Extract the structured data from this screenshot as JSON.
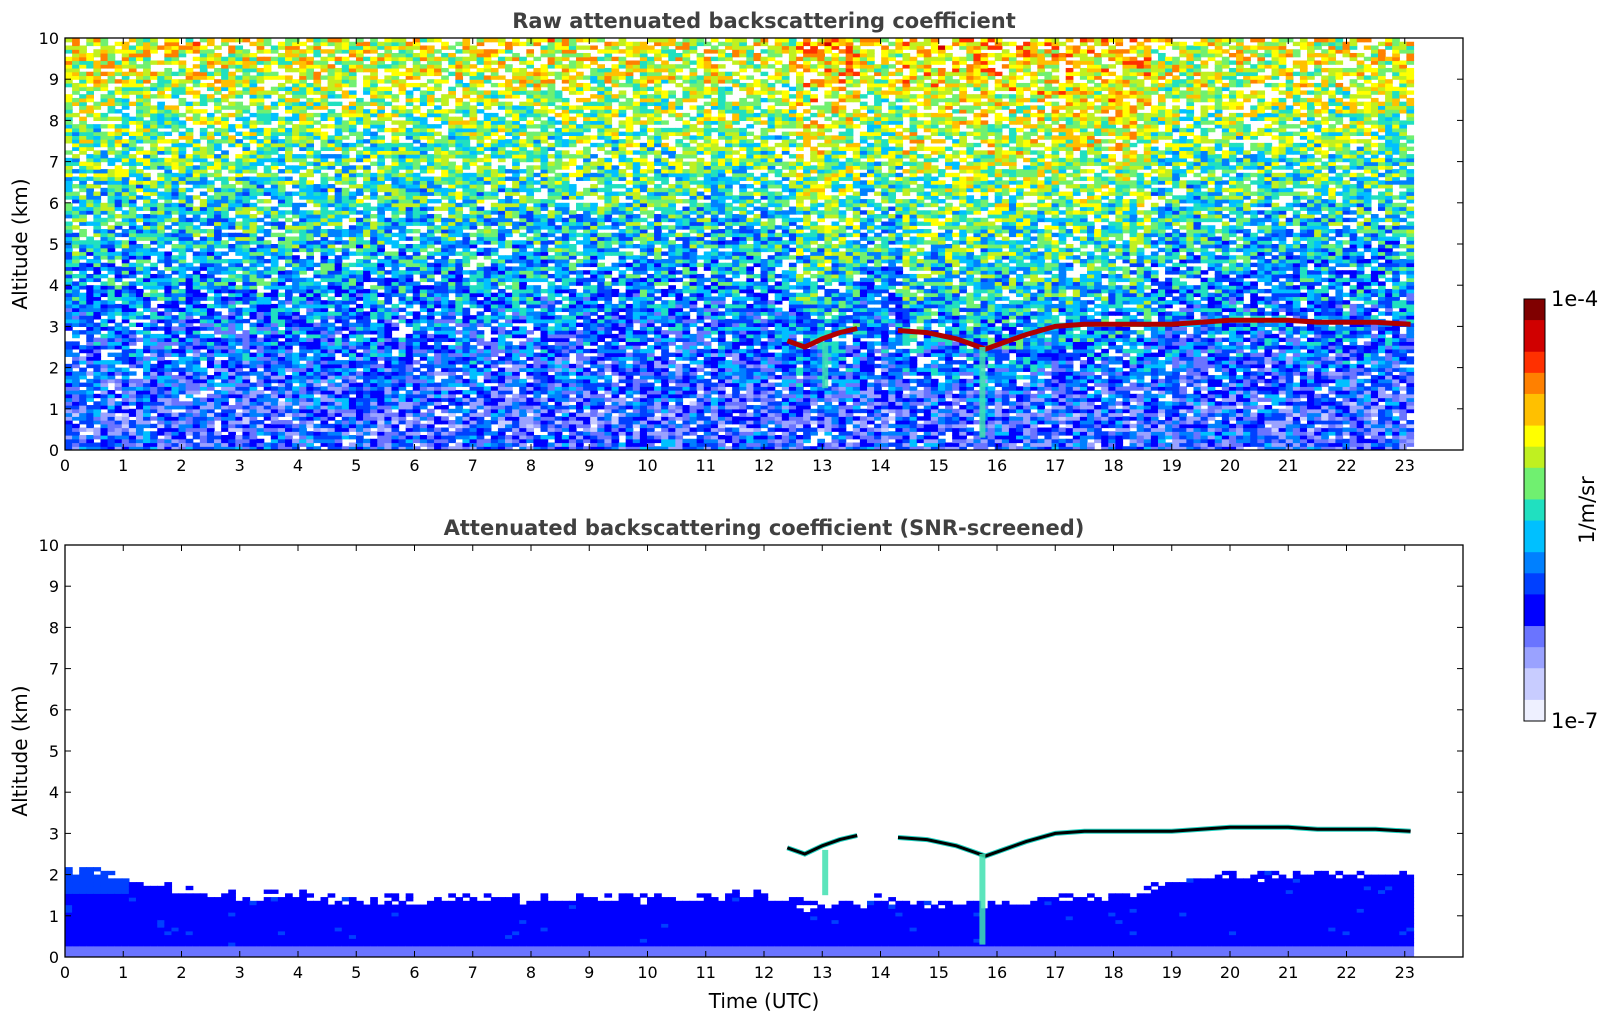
{
  "chart_data": [
    {
      "type": "heatmap",
      "title": "Raw attenuated backscattering coefficient",
      "xlabel": "",
      "ylabel": "Altitude (km)",
      "xlim": [
        0,
        24
      ],
      "ylim": [
        0,
        10
      ],
      "x_ticks": [
        "0",
        "1",
        "2",
        "3",
        "4",
        "5",
        "6",
        "7",
        "8",
        "9",
        "10",
        "11",
        "12",
        "13",
        "14",
        "15",
        "16",
        "17",
        "18",
        "19",
        "20",
        "21",
        "22",
        "23"
      ],
      "y_ticks": [
        "0",
        "1",
        "2",
        "3",
        "4",
        "5",
        "6",
        "7",
        "8",
        "9",
        "10"
      ],
      "data_extent_hours": 23.15,
      "screened": false,
      "cloud_layer_km": {
        "time_utc": [
          12.4,
          12.7,
          13.0,
          13.3,
          13.6,
          14.3,
          14.8,
          15.3,
          15.6,
          15.8,
          16.1,
          16.5,
          17.0,
          17.5,
          18.0,
          18.5,
          19.0,
          19.5,
          20.0,
          20.5,
          21.0,
          21.5,
          22.0,
          22.5,
          23.1
        ],
        "altitude_km": [
          2.65,
          2.5,
          2.7,
          2.85,
          2.95,
          2.9,
          2.85,
          2.7,
          2.55,
          2.45,
          2.6,
          2.8,
          3.0,
          3.05,
          3.05,
          3.05,
          3.05,
          3.1,
          3.15,
          3.15,
          3.15,
          3.1,
          3.1,
          3.1,
          3.05
        ]
      },
      "gap_hours": [
        13.65,
        14.25
      ]
    },
    {
      "type": "heatmap",
      "title": "Attenuated backscattering coefficient (SNR-screened)",
      "xlabel": "Time (UTC)",
      "ylabel": "Altitude (km)",
      "xlim": [
        0,
        24
      ],
      "ylim": [
        0,
        10
      ],
      "x_ticks": [
        "0",
        "1",
        "2",
        "3",
        "4",
        "5",
        "6",
        "7",
        "8",
        "9",
        "10",
        "11",
        "12",
        "13",
        "14",
        "15",
        "16",
        "17",
        "18",
        "19",
        "20",
        "21",
        "22",
        "23"
      ],
      "y_ticks": [
        "0",
        "1",
        "2",
        "3",
        "4",
        "5",
        "6",
        "7",
        "8",
        "9",
        "10"
      ],
      "data_extent_hours": 23.15,
      "screened": true,
      "aerosol_top_km": {
        "time_utc": [
          0,
          0.5,
          1.0,
          1.5,
          2.0,
          3.0,
          4.0,
          5.0,
          6.0,
          7.0,
          8.0,
          9.0,
          10.0,
          11.0,
          12.0,
          13.0,
          14.0,
          15.0,
          16.0,
          17.0,
          18.0,
          19.0,
          20.0,
          21.0,
          22.0,
          23.1
        ],
        "altitude_km": [
          2.2,
          2.1,
          1.9,
          1.7,
          1.6,
          1.5,
          1.5,
          1.4,
          1.4,
          1.45,
          1.4,
          1.45,
          1.4,
          1.45,
          1.5,
          1.2,
          1.4,
          1.3,
          1.3,
          1.4,
          1.5,
          1.8,
          2.0,
          2.0,
          2.0,
          2.0
        ]
      }
    }
  ],
  "colorbar": {
    "label": "1/m/sr",
    "max_label": "1e-4",
    "min_label": "1e-7",
    "scale": "log",
    "range": [
      1e-07,
      0.0001
    ],
    "colors": [
      "#eef0ff",
      "#c8ccff",
      "#9aa2ff",
      "#6a74ff",
      "#0000ff",
      "#0040ff",
      "#0080ff",
      "#00c0ff",
      "#20e0c0",
      "#70f070",
      "#c0f020",
      "#ffff00",
      "#ffc000",
      "#ff8000",
      "#ff3000",
      "#d00000",
      "#800000"
    ]
  }
}
